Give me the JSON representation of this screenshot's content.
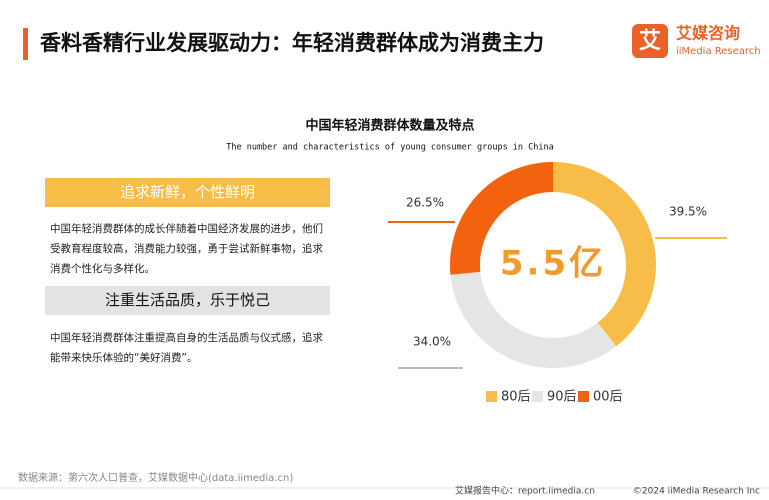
{
  "header": {
    "title": "香料香精行业发展驱动力：年轻消费群体成为消费主力",
    "logo_icon": "艾",
    "logo_cn": "艾媒咨询",
    "logo_en": "iiMedia Research"
  },
  "panels": [
    {
      "heading": "追求新鲜，个性鲜明",
      "text": "中国年轻消费群体的成长伴随着中国经济发展的进步，他们受教育程度较高，消费能力较强，勇于尝试新鲜事物，追求消费个性化与多样化。"
    },
    {
      "heading": "注重生活品质，乐于悦己",
      "text": "中国年轻消费群体注重提高自身的生活品质与仪式感，追求能带来快乐体验的“美好消费”。"
    }
  ],
  "chart_data": {
    "type": "donut",
    "title": "中国年轻消费群体数量及特点",
    "subtitle": "The number and characteristics of young consumer groups in China",
    "center_label": "5.5亿",
    "categories": [
      "80后",
      "90后",
      "00后"
    ],
    "values": [
      39.5,
      34,
      26.5
    ],
    "value_labels": [
      "39.5%",
      "34.0%",
      "26.5%"
    ],
    "colors": [
      "#F8BD48",
      "#E5E5E5",
      "#F2620F"
    ]
  },
  "footer": {
    "source": "数据来源：第六次人口普查，艾媒数据中心(data.iimedia.cn)",
    "center": "艾媒报告中心：report.iimedia.cn",
    "copyright": "©2024  iiMedia Research  Inc"
  }
}
